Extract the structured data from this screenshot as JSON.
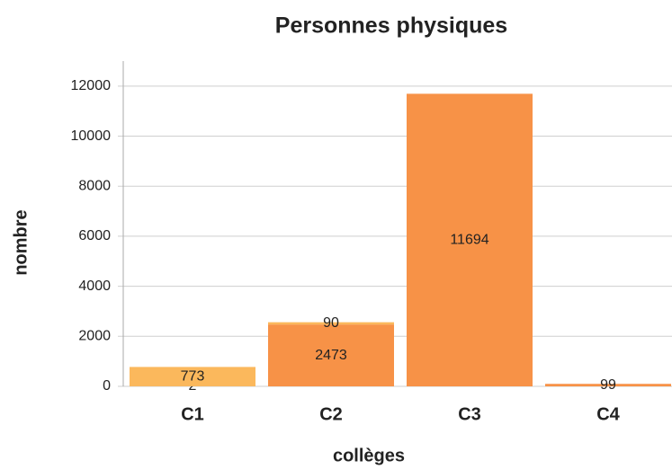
{
  "chart_data": {
    "type": "stacked_bar",
    "title": "Personnes physiques",
    "x_label": "collèges",
    "y_label": "nombre",
    "categories": [
      "C1",
      "C2",
      "C3",
      "C4"
    ],
    "series": [
      {
        "color": "#f79247",
        "values": [
          2,
          2473,
          11694,
          99
        ]
      },
      {
        "color": "#fbb85c",
        "values": [
          773,
          90,
          null,
          null
        ]
      }
    ],
    "ylim": [
      0,
      13000
    ],
    "yticks": [
      0,
      2000,
      4000,
      6000,
      8000,
      10000,
      12000
    ],
    "grid": true
  }
}
